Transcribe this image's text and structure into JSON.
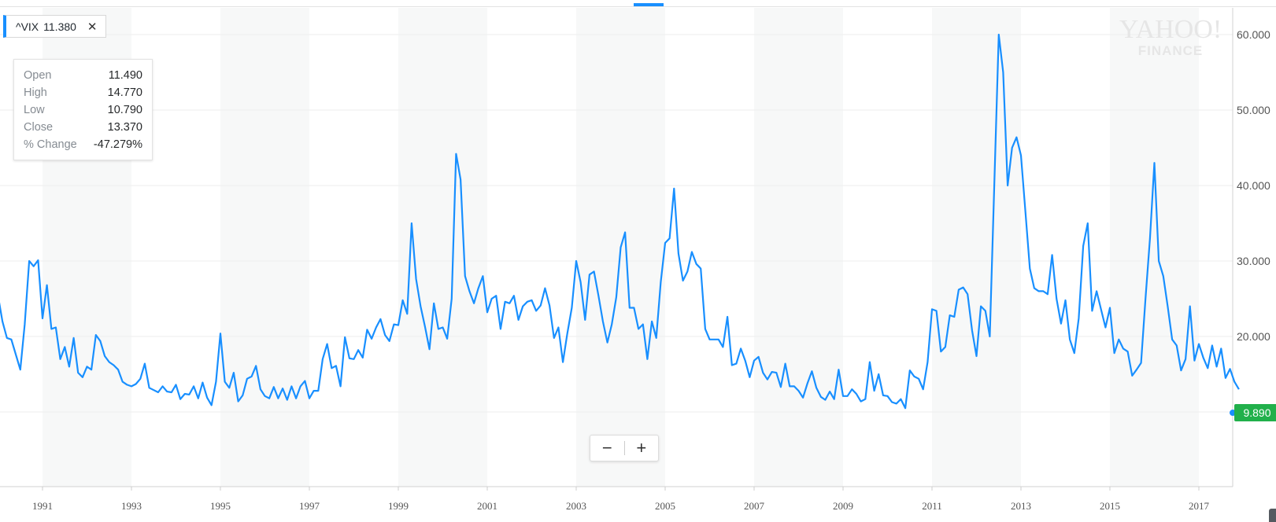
{
  "ticker": {
    "symbol": "^VIX",
    "price": "11.380",
    "close_symbol": "✕"
  },
  "ohlc": [
    {
      "label": "Open",
      "value": "11.490"
    },
    {
      "label": "High",
      "value": "14.770"
    },
    {
      "label": "Low",
      "value": "10.790"
    },
    {
      "label": "Close",
      "value": "13.370"
    },
    {
      "label": "% Change",
      "value": "-47.279%"
    }
  ],
  "watermark": {
    "line1": "YAHOO!",
    "line2": "FINANCE"
  },
  "zoom": {
    "minus": "−",
    "plus": "+"
  },
  "current_value_label": "9.890",
  "colors": {
    "line": "#188fff",
    "current_badge": "#21b04b",
    "band": "#f7f8f8",
    "grid": "#eeeeee"
  },
  "chart_data": {
    "type": "line",
    "title": "",
    "xlabel": "",
    "ylabel": "",
    "x_range": [
      1990.0,
      2017.9
    ],
    "ylim": [
      3.0,
      65.0
    ],
    "y_ticks": [
      "60.000",
      "50.000",
      "40.000",
      "30.000",
      "20.000"
    ],
    "x_ticks": [
      "1991",
      "1993",
      "1995",
      "1997",
      "1999",
      "2001",
      "2003",
      "2005",
      "2007",
      "2009",
      "2011",
      "2013",
      "2015",
      "2017"
    ],
    "grid": true,
    "legend": "none",
    "series": [
      {
        "interval": "monthly",
        "points": [
          [
            1990.0,
            25.4
          ],
          [
            1990.1,
            22.0
          ],
          [
            1990.2,
            19.8
          ],
          [
            1990.3,
            19.6
          ],
          [
            1990.4,
            17.6
          ],
          [
            1990.5,
            15.6
          ],
          [
            1990.6,
            21.6
          ],
          [
            1990.7,
            30.0
          ],
          [
            1990.8,
            29.3
          ],
          [
            1990.9,
            30.1
          ],
          [
            1991.0,
            22.4
          ],
          [
            1991.1,
            26.8
          ],
          [
            1991.2,
            21.0
          ],
          [
            1991.3,
            21.2
          ],
          [
            1991.4,
            17.0
          ],
          [
            1991.5,
            18.6
          ],
          [
            1991.6,
            16.0
          ],
          [
            1991.7,
            19.8
          ],
          [
            1991.8,
            15.2
          ],
          [
            1991.9,
            14.6
          ],
          [
            1992.0,
            16.0
          ],
          [
            1992.1,
            15.6
          ],
          [
            1992.2,
            20.2
          ],
          [
            1992.3,
            19.4
          ],
          [
            1992.4,
            17.4
          ],
          [
            1992.5,
            16.6
          ],
          [
            1992.6,
            16.2
          ],
          [
            1992.7,
            15.6
          ],
          [
            1992.8,
            14.0
          ],
          [
            1992.9,
            13.6
          ],
          [
            1993.0,
            13.4
          ],
          [
            1993.1,
            13.7
          ],
          [
            1993.2,
            14.4
          ],
          [
            1993.3,
            16.4
          ],
          [
            1993.4,
            13.2
          ],
          [
            1993.5,
            12.9
          ],
          [
            1993.6,
            12.6
          ],
          [
            1993.7,
            13.4
          ],
          [
            1993.8,
            12.7
          ],
          [
            1993.9,
            12.6
          ],
          [
            1994.0,
            13.6
          ],
          [
            1994.1,
            11.7
          ],
          [
            1994.2,
            12.4
          ],
          [
            1994.3,
            12.3
          ],
          [
            1994.4,
            13.4
          ],
          [
            1994.5,
            11.8
          ],
          [
            1994.6,
            13.9
          ],
          [
            1994.7,
            11.9
          ],
          [
            1994.8,
            10.9
          ],
          [
            1994.9,
            14.0
          ],
          [
            1995.0,
            20.4
          ],
          [
            1995.1,
            14.0
          ],
          [
            1995.2,
            13.2
          ],
          [
            1995.3,
            15.2
          ],
          [
            1995.4,
            11.4
          ],
          [
            1995.5,
            12.2
          ],
          [
            1995.6,
            14.4
          ],
          [
            1995.7,
            14.7
          ],
          [
            1995.8,
            16.1
          ],
          [
            1995.9,
            13.0
          ],
          [
            1996.0,
            12.1
          ],
          [
            1996.1,
            11.8
          ],
          [
            1996.2,
            13.3
          ],
          [
            1996.3,
            11.8
          ],
          [
            1996.4,
            13.1
          ],
          [
            1996.5,
            11.6
          ],
          [
            1996.6,
            13.4
          ],
          [
            1996.7,
            11.8
          ],
          [
            1996.8,
            13.4
          ],
          [
            1996.9,
            14.1
          ],
          [
            1997.0,
            11.8
          ],
          [
            1997.1,
            12.8
          ],
          [
            1997.2,
            12.8
          ],
          [
            1997.3,
            17.0
          ],
          [
            1997.4,
            19.0
          ],
          [
            1997.5,
            15.8
          ],
          [
            1997.6,
            16.1
          ],
          [
            1997.7,
            13.4
          ],
          [
            1997.8,
            19.9
          ],
          [
            1997.9,
            17.1
          ],
          [
            1998.0,
            17.0
          ],
          [
            1998.1,
            18.2
          ],
          [
            1998.2,
            17.2
          ],
          [
            1998.3,
            20.9
          ],
          [
            1998.4,
            19.7
          ],
          [
            1998.5,
            21.2
          ],
          [
            1998.6,
            22.3
          ],
          [
            1998.7,
            20.2
          ],
          [
            1998.8,
            19.4
          ],
          [
            1998.9,
            21.6
          ],
          [
            1999.0,
            21.5
          ],
          [
            1999.1,
            24.8
          ],
          [
            1999.2,
            23.0
          ],
          [
            1999.3,
            35.0
          ],
          [
            1999.4,
            27.6
          ],
          [
            1999.5,
            24.0
          ],
          [
            1999.6,
            21.3
          ],
          [
            1999.7,
            18.3
          ],
          [
            1999.8,
            24.4
          ],
          [
            1999.9,
            21.0
          ],
          [
            2000.0,
            21.2
          ],
          [
            2000.1,
            19.7
          ],
          [
            2000.2,
            25.0
          ],
          [
            2000.3,
            44.2
          ],
          [
            2000.4,
            40.8
          ],
          [
            2000.5,
            28.0
          ],
          [
            2000.6,
            26.0
          ],
          [
            2000.7,
            24.4
          ],
          [
            2000.8,
            26.4
          ],
          [
            2000.9,
            28.0
          ],
          [
            2001.0,
            23.2
          ],
          [
            2001.1,
            25.0
          ],
          [
            2001.2,
            25.4
          ],
          [
            2001.3,
            21.0
          ],
          [
            2001.4,
            24.6
          ],
          [
            2001.5,
            24.4
          ],
          [
            2001.6,
            25.4
          ],
          [
            2001.7,
            22.2
          ],
          [
            2001.8,
            24.0
          ],
          [
            2001.9,
            24.6
          ],
          [
            2002.0,
            24.8
          ],
          [
            2002.1,
            23.4
          ],
          [
            2002.2,
            24.1
          ],
          [
            2002.3,
            26.4
          ],
          [
            2002.4,
            24.1
          ],
          [
            2002.5,
            19.8
          ],
          [
            2002.6,
            21.2
          ],
          [
            2002.7,
            16.6
          ],
          [
            2002.8,
            20.4
          ],
          [
            2002.9,
            23.8
          ],
          [
            2003.0,
            30.0
          ],
          [
            2003.1,
            27.2
          ],
          [
            2003.2,
            22.2
          ],
          [
            2003.3,
            28.2
          ],
          [
            2003.4,
            28.6
          ],
          [
            2003.5,
            25.4
          ],
          [
            2003.6,
            22.0
          ],
          [
            2003.7,
            19.2
          ],
          [
            2003.8,
            21.6
          ],
          [
            2003.9,
            25.2
          ],
          [
            2004.0,
            31.8
          ],
          [
            2004.1,
            33.8
          ],
          [
            2004.2,
            23.8
          ],
          [
            2004.3,
            23.8
          ],
          [
            2004.4,
            21.0
          ],
          [
            2004.5,
            21.6
          ],
          [
            2004.6,
            17.0
          ],
          [
            2004.7,
            22.0
          ],
          [
            2004.8,
            19.8
          ],
          [
            2004.9,
            27.2
          ],
          [
            2005.0,
            32.4
          ],
          [
            2005.1,
            33.0
          ],
          [
            2005.2,
            39.6
          ],
          [
            2005.3,
            31.0
          ],
          [
            2005.4,
            27.4
          ],
          [
            2005.5,
            28.6
          ],
          [
            2005.6,
            31.2
          ],
          [
            2005.7,
            29.6
          ],
          [
            2005.8,
            29.0
          ],
          [
            2005.9,
            21.0
          ],
          [
            2006.0,
            19.6
          ],
          [
            2006.1,
            19.6
          ],
          [
            2006.2,
            19.6
          ],
          [
            2006.3,
            18.6
          ],
          [
            2006.4,
            22.6
          ],
          [
            2006.5,
            16.2
          ],
          [
            2006.6,
            16.4
          ],
          [
            2006.7,
            18.4
          ],
          [
            2006.8,
            16.8
          ],
          [
            2006.9,
            14.6
          ],
          [
            2007.0,
            16.8
          ],
          [
            2007.1,
            17.3
          ],
          [
            2007.2,
            15.2
          ],
          [
            2007.3,
            14.3
          ],
          [
            2007.4,
            15.3
          ],
          [
            2007.5,
            15.2
          ],
          [
            2007.6,
            13.3
          ],
          [
            2007.7,
            16.4
          ],
          [
            2007.8,
            13.4
          ],
          [
            2007.9,
            13.4
          ],
          [
            2008.0,
            12.8
          ],
          [
            2008.1,
            11.9
          ],
          [
            2008.2,
            13.8
          ],
          [
            2008.3,
            15.4
          ],
          [
            2008.4,
            13.2
          ],
          [
            2008.5,
            12.0
          ],
          [
            2008.6,
            11.6
          ],
          [
            2008.7,
            12.7
          ],
          [
            2008.8,
            11.7
          ],
          [
            2008.9,
            15.6
          ],
          [
            2009.0,
            12.1
          ],
          [
            2009.1,
            12.1
          ],
          [
            2009.2,
            13.0
          ],
          [
            2009.3,
            12.4
          ],
          [
            2009.4,
            11.4
          ],
          [
            2009.5,
            11.7
          ],
          [
            2009.6,
            16.6
          ],
          [
            2009.7,
            12.8
          ],
          [
            2009.8,
            15.0
          ],
          [
            2009.9,
            12.2
          ],
          [
            2010.0,
            12.1
          ],
          [
            2010.1,
            11.3
          ],
          [
            2010.2,
            11.1
          ],
          [
            2010.3,
            11.7
          ],
          [
            2010.4,
            10.5
          ],
          [
            2010.5,
            15.5
          ],
          [
            2010.6,
            14.7
          ],
          [
            2010.7,
            14.4
          ],
          [
            2010.8,
            13.0
          ],
          [
            2010.9,
            16.6
          ],
          [
            2011.0,
            23.6
          ],
          [
            2011.1,
            23.4
          ],
          [
            2011.2,
            18.0
          ],
          [
            2011.3,
            18.6
          ],
          [
            2011.4,
            22.8
          ],
          [
            2011.5,
            22.6
          ],
          [
            2011.6,
            26.2
          ],
          [
            2011.7,
            26.5
          ],
          [
            2011.8,
            25.6
          ],
          [
            2011.9,
            20.8
          ],
          [
            2012.0,
            17.4
          ],
          [
            2012.1,
            24.0
          ],
          [
            2012.2,
            23.4
          ],
          [
            2012.3,
            20.0
          ],
          [
            2012.4,
            40.0
          ],
          [
            2012.5,
            60.0
          ],
          [
            2012.6,
            55.0
          ],
          [
            2012.7,
            40.0
          ],
          [
            2012.8,
            45.0
          ],
          [
            2012.9,
            46.4
          ],
          [
            2013.0,
            44.0
          ],
          [
            2013.1,
            36.6
          ],
          [
            2013.2,
            29.0
          ],
          [
            2013.3,
            26.4
          ],
          [
            2013.4,
            26.0
          ],
          [
            2013.5,
            26.0
          ],
          [
            2013.6,
            25.6
          ],
          [
            2013.7,
            30.8
          ],
          [
            2013.8,
            25.0
          ],
          [
            2013.9,
            21.7
          ],
          [
            2014.0,
            24.8
          ],
          [
            2014.1,
            19.6
          ],
          [
            2014.2,
            17.8
          ],
          [
            2014.3,
            22.4
          ],
          [
            2014.4,
            32.0
          ],
          [
            2014.5,
            35.0
          ],
          [
            2014.6,
            23.4
          ],
          [
            2014.7,
            26.0
          ],
          [
            2014.8,
            23.6
          ],
          [
            2014.9,
            21.2
          ],
          [
            2015.0,
            23.8
          ],
          [
            2015.1,
            17.8
          ],
          [
            2015.2,
            19.6
          ],
          [
            2015.3,
            18.4
          ],
          [
            2015.4,
            18.0
          ],
          [
            2015.5,
            14.8
          ],
          [
            2015.6,
            15.6
          ],
          [
            2015.7,
            16.5
          ],
          [
            2015.8,
            25.0
          ],
          [
            2015.9,
            33.0
          ],
          [
            2016.0,
            43.0
          ],
          [
            2016.1,
            30.0
          ],
          [
            2016.2,
            28.0
          ],
          [
            2016.3,
            24.0
          ],
          [
            2016.4,
            19.6
          ],
          [
            2016.5,
            18.8
          ],
          [
            2016.6,
            15.5
          ],
          [
            2016.7,
            17.0
          ],
          [
            2016.8,
            24.0
          ],
          [
            2016.9,
            16.8
          ],
          [
            2017.0,
            19.0
          ],
          [
            2017.1,
            17.2
          ],
          [
            2017.2,
            15.8
          ],
          [
            2017.3,
            18.8
          ],
          [
            2017.4,
            16.0
          ],
          [
            2017.5,
            18.4
          ],
          [
            2017.6,
            14.5
          ],
          [
            2017.7,
            15.7
          ],
          [
            2017.8,
            14.0
          ],
          [
            2017.9,
            13.0
          ]
        ]
      }
    ]
  }
}
